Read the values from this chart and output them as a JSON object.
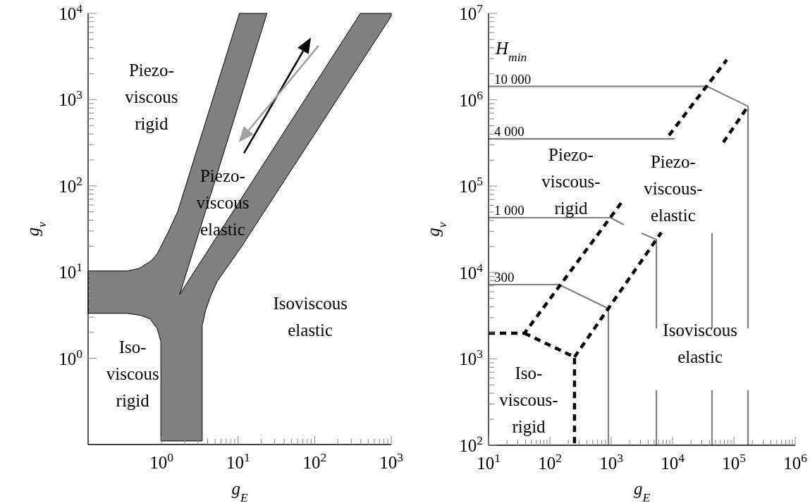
{
  "chart_data": [
    {
      "type": "area",
      "xlabel": "g$_{E}$",
      "ylabel": "g$_{v}$",
      "log": "xy",
      "xlim": [
        0.11,
        1000
      ],
      "ylim": [
        0.1,
        10000
      ],
      "xticks": [
        {
          "value": 1,
          "label": "10$^{0}$"
        },
        {
          "value": 2,
          "label": null
        },
        {
          "value": 3,
          "label": null
        },
        {
          "value": 4,
          "label": null
        },
        {
          "value": 5,
          "label": null
        },
        {
          "value": 6,
          "label": null
        },
        {
          "value": 7,
          "label": null
        },
        {
          "value": 8,
          "label": null
        },
        {
          "value": 9,
          "label": null
        },
        {
          "value": 10,
          "label": "10$^{1}$"
        },
        {
          "value": 20,
          "label": null
        },
        {
          "value": 30,
          "label": null
        },
        {
          "value": 40,
          "label": null
        },
        {
          "value": 50,
          "label": null
        },
        {
          "value": 60,
          "label": null
        },
        {
          "value": 70,
          "label": null
        },
        {
          "value": 80,
          "label": null
        },
        {
          "value": 90,
          "label": null
        },
        {
          "value": 100,
          "label": "10$^{2}$"
        },
        {
          "value": 200,
          "label": null
        },
        {
          "value": 300,
          "label": null
        },
        {
          "value": 400,
          "label": null
        },
        {
          "value": 500,
          "label": null
        },
        {
          "value": 600,
          "label": null
        },
        {
          "value": 700,
          "label": null
        },
        {
          "value": 800,
          "label": null
        },
        {
          "value": 900,
          "label": null
        },
        {
          "value": 1000,
          "label": "10$^{3}$"
        }
      ],
      "yticks": [
        {
          "value": 1,
          "label": "10$^{0}$"
        },
        {
          "value": 2,
          "label": null
        },
        {
          "value": 3,
          "label": null
        },
        {
          "value": 4,
          "label": null
        },
        {
          "value": 5,
          "label": null
        },
        {
          "value": 6,
          "label": null
        },
        {
          "value": 7,
          "label": null
        },
        {
          "value": 8,
          "label": null
        },
        {
          "value": 9,
          "label": null
        },
        {
          "value": 10,
          "label": "10$^{1}$"
        },
        {
          "value": 20,
          "label": null
        },
        {
          "value": 30,
          "label": null
        },
        {
          "value": 40,
          "label": null
        },
        {
          "value": 50,
          "label": null
        },
        {
          "value": 60,
          "label": null
        },
        {
          "value": 70,
          "label": null
        },
        {
          "value": 80,
          "label": null
        },
        {
          "value": 90,
          "label": null
        },
        {
          "value": 100,
          "label": "10$^{2}$"
        },
        {
          "value": 200,
          "label": null
        },
        {
          "value": 300,
          "label": null
        },
        {
          "value": 400,
          "label": null
        },
        {
          "value": 500,
          "label": null
        },
        {
          "value": 600,
          "label": null
        },
        {
          "value": 700,
          "label": null
        },
        {
          "value": 800,
          "label": null
        },
        {
          "value": 900,
          "label": null
        },
        {
          "value": 1000,
          "label": "10$^{3}$"
        },
        {
          "value": 2000,
          "label": null
        },
        {
          "value": 3000,
          "label": null
        },
        {
          "value": 4000,
          "label": null
        },
        {
          "value": 5000,
          "label": null
        },
        {
          "value": 6000,
          "label": null
        },
        {
          "value": 7000,
          "label": null
        },
        {
          "value": 8000,
          "label": null
        },
        {
          "value": 9000,
          "label": null
        },
        {
          "value": 10000,
          "label": "10$^{4}$"
        }
      ],
      "series": [
        {
          "color": "#808080",
          "x": [
            10.4,
            23.8,
            1.73,
            395,
            1000,
            1000,
            11.1,
            5.3,
            4.39,
            3.78,
            3.4,
            3.4,
            0.98,
            0.98,
            0.88,
            0.71,
            0.54,
            0.36,
            0.11,
            0.11,
            0.355,
            0.51,
            0.74,
            0.88,
            1.18,
            1.63
          ],
          "values": [
            10000,
            10000,
            5.52,
            10000,
            10000,
            9300,
            19.8,
            7.73,
            5.31,
            3.65,
            2.42,
            0.11,
            0.11,
            1.57,
            2.2,
            2.86,
            3.14,
            3.32,
            3.32,
            10.3,
            10.3,
            11,
            13.6,
            16.4,
            27.2,
            50.5
          ]
        }
      ],
      "annotations": [
        "Piezo-\nviscous\nrigid",
        "Piezo-\nviscous\nelastic",
        "Isoviscous\nelastic",
        "Iso-\nviscous\nrigid"
      ]
    },
    {
      "type": "line",
      "xlabel": "g$_{E}$",
      "ylabel": "g$_{v}$",
      "legend_title": "H$_{min}$",
      "legend": "left",
      "log": "xy",
      "xlim": [
        10,
        1000000
      ],
      "ylim": [
        100,
        10000000
      ],
      "xticks": [
        {
          "value": 10,
          "label": "10$^{1}$"
        },
        {
          "value": 20,
          "label": null
        },
        {
          "value": 30,
          "label": null
        },
        {
          "value": 40,
          "label": null
        },
        {
          "value": 50,
          "label": null
        },
        {
          "value": 60,
          "label": null
        },
        {
          "value": 70,
          "label": null
        },
        {
          "value": 80,
          "label": null
        },
        {
          "value": 90,
          "label": null
        },
        {
          "value": 100,
          "label": "10$^{2}$"
        },
        {
          "value": 200,
          "label": null
        },
        {
          "value": 300,
          "label": null
        },
        {
          "value": 400,
          "label": null
        },
        {
          "value": 500,
          "label": null
        },
        {
          "value": 600,
          "label": null
        },
        {
          "value": 700,
          "label": null
        },
        {
          "value": 800,
          "label": null
        },
        {
          "value": 900,
          "label": null
        },
        {
          "value": 1000,
          "label": "10$^{3}$"
        },
        {
          "value": 2000,
          "label": null
        },
        {
          "value": 3000,
          "label": null
        },
        {
          "value": 4000,
          "label": null
        },
        {
          "value": 5000,
          "label": null
        },
        {
          "value": 6000,
          "label": null
        },
        {
          "value": 7000,
          "label": null
        },
        {
          "value": 8000,
          "label": null
        },
        {
          "value": 9000,
          "label": null
        },
        {
          "value": 10000,
          "label": "10$^{4}$"
        },
        {
          "value": 20000,
          "label": null
        },
        {
          "value": 30000,
          "label": null
        },
        {
          "value": 40000,
          "label": null
        },
        {
          "value": 50000,
          "label": null
        },
        {
          "value": 60000,
          "label": null
        },
        {
          "value": 70000,
          "label": null
        },
        {
          "value": 80000,
          "label": null
        },
        {
          "value": 90000,
          "label": null
        },
        {
          "value": 100000,
          "label": "10$^{5}$"
        },
        {
          "value": 200000,
          "label": null
        },
        {
          "value": 300000,
          "label": null
        },
        {
          "value": 400000,
          "label": null
        },
        {
          "value": 500000,
          "label": null
        },
        {
          "value": 600000,
          "label": null
        },
        {
          "value": 700000,
          "label": null
        },
        {
          "value": 800000,
          "label": null
        },
        {
          "value": 900000,
          "label": null
        },
        {
          "value": 1000000,
          "label": "10$^{6}$"
        }
      ],
      "yticks": [
        {
          "value": 100,
          "label": "10$^{2}$"
        },
        {
          "value": 200,
          "label": null
        },
        {
          "value": 300,
          "label": null
        },
        {
          "value": 400,
          "label": null
        },
        {
          "value": 500,
          "label": null
        },
        {
          "value": 600,
          "label": null
        },
        {
          "value": 700,
          "label": null
        },
        {
          "value": 800,
          "label": null
        },
        {
          "value": 900,
          "label": null
        },
        {
          "value": 1000,
          "label": "10$^{3}$"
        },
        {
          "value": 2000,
          "label": null
        },
        {
          "value": 3000,
          "label": null
        },
        {
          "value": 4000,
          "label": null
        },
        {
          "value": 5000,
          "label": null
        },
        {
          "value": 6000,
          "label": null
        },
        {
          "value": 7000,
          "label": null
        },
        {
          "value": 8000,
          "label": null
        },
        {
          "value": 9000,
          "label": null
        },
        {
          "value": 10000,
          "label": "10$^{4}$"
        },
        {
          "value": 20000,
          "label": null
        },
        {
          "value": 30000,
          "label": null
        },
        {
          "value": 40000,
          "label": null
        },
        {
          "value": 50000,
          "label": null
        },
        {
          "value": 60000,
          "label": null
        },
        {
          "value": 70000,
          "label": null
        },
        {
          "value": 80000,
          "label": null
        },
        {
          "value": 90000,
          "label": null
        },
        {
          "value": 100000,
          "label": "10$^{5}$"
        },
        {
          "value": 200000,
          "label": null
        },
        {
          "value": 300000,
          "label": null
        },
        {
          "value": 400000,
          "label": null
        },
        {
          "value": 500000,
          "label": null
        },
        {
          "value": 600000,
          "label": null
        },
        {
          "value": 700000,
          "label": null
        },
        {
          "value": 800000,
          "label": null
        },
        {
          "value": 900000,
          "label": null
        },
        {
          "value": 1000000,
          "label": "10$^{6}$"
        },
        {
          "value": 2000000,
          "label": null
        },
        {
          "value": 3000000,
          "label": null
        },
        {
          "value": 4000000,
          "label": null
        },
        {
          "value": 5000000,
          "label": null
        },
        {
          "value": 6000000,
          "label": null
        },
        {
          "value": 7000000,
          "label": null
        },
        {
          "value": 8000000,
          "label": null
        },
        {
          "value": 9000000,
          "label": null
        },
        {
          "value": 10000000,
          "label": "10$^{7}$"
        }
      ],
      "series": [
        {
          "name": "10 000",
          "color": "#808080",
          "line_style": "solid",
          "x": [
            10,
            36600,
            170000,
            170000
          ],
          "values": [
            1430000,
            1430000,
            840000,
            2260
          ]
        },
        {
          "color": "#808080",
          "line_style": "solid",
          "x": [
            170000,
            170000
          ],
          "values": [
            433,
            100
          ]
        },
        {
          "name": "4 000",
          "color": "#808080",
          "line_style": "solid",
          "x": [
            10,
            10800
          ],
          "values": [
            353000,
            353000
          ]
        },
        {
          "color": "#808080",
          "line_style": "solid",
          "x": [
            44000,
            44000
          ],
          "values": [
            28500,
            2260
          ]
        },
        {
          "color": "#808080",
          "line_style": "solid",
          "x": [
            44000,
            44000
          ],
          "values": [
            433,
            100
          ]
        },
        {
          "name": "1 000",
          "color": "#808080",
          "line_style": "solid",
          "x": [
            10,
            975,
            1610
          ],
          "values": [
            43100,
            43100,
            35700
          ]
        },
        {
          "color": "#808080",
          "line_style": "solid",
          "x": [
            3120,
            5450,
            5450
          ],
          "values": [
            28500,
            24100,
            2260
          ]
        },
        {
          "color": "#808080",
          "line_style": "solid",
          "x": [
            5450,
            5450
          ],
          "values": [
            433,
            100
          ]
        },
        {
          "name": "300",
          "color": "#808080",
          "line_style": "solid",
          "x": [
            10,
            141,
            900,
            900
          ],
          "values": [
            7240,
            7240,
            3820,
            100
          ]
        },
        {
          "color": "#000000",
          "line_style": "dashed",
          "x": [
            10,
            38.5,
            1610
          ],
          "values": [
            1980,
            1980,
            70300
          ]
        },
        {
          "color": "#000000",
          "line_style": "dashed",
          "x": [
            8770,
            76700
          ],
          "values": [
            388000,
            2900000
          ]
        },
        {
          "color": "#000000",
          "line_style": "dashed",
          "x": [
            38.5,
            252,
            252
          ],
          "values": [
            1980,
            1050,
            100
          ]
        },
        {
          "color": "#000000",
          "line_style": "dashed",
          "x": [
            252,
            6550
          ],
          "values": [
            1050,
            29000
          ]
        },
        {
          "color": "#000000",
          "line_style": "dashed",
          "x": [
            67300,
            170000
          ],
          "values": [
            321000,
            840000
          ]
        }
      ],
      "annotations": [
        "Piezo-\nviscous-\nrigid",
        "Piezo-\nviscous-\nelastic",
        "Iso-\nviscous-\nrigid",
        "Isoviscous\nelastic"
      ]
    }
  ]
}
